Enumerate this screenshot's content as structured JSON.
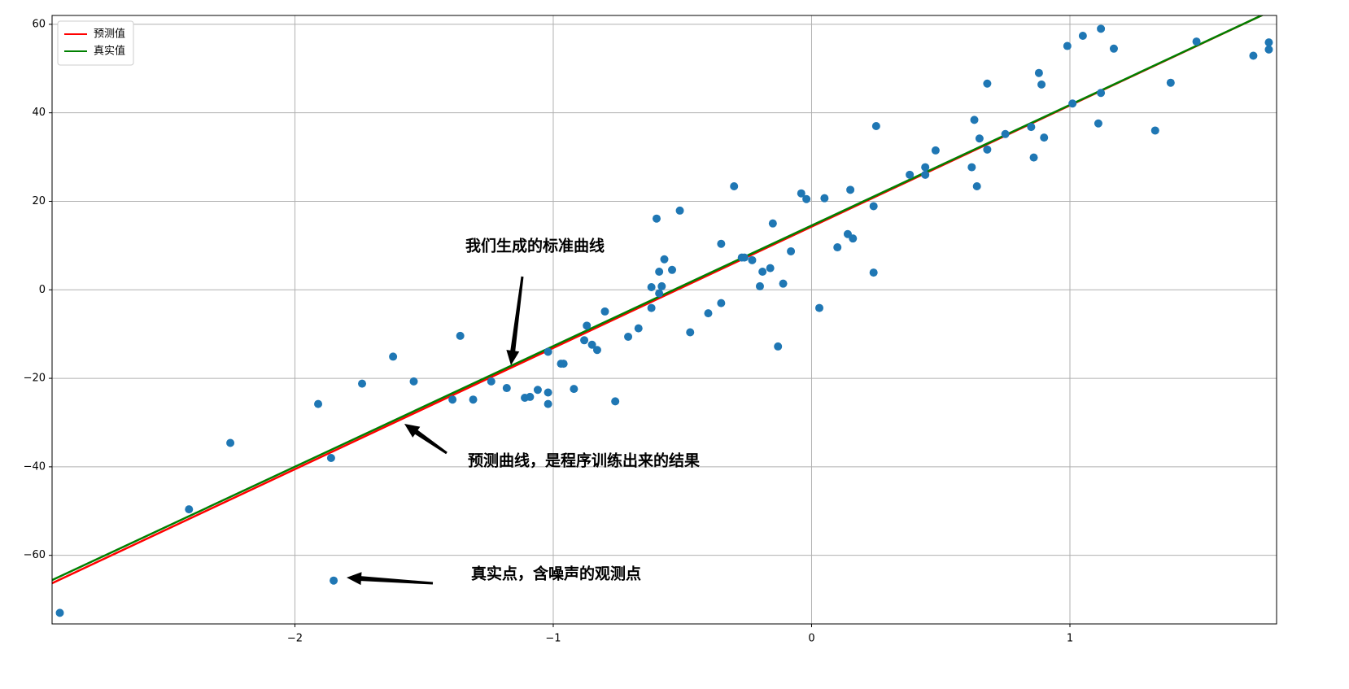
{
  "chart_data": {
    "type": "scatter",
    "xlim": [
      -2.94,
      1.8
    ],
    "ylim": [
      -75.5,
      62
    ],
    "xticks": [
      {
        "value": -2,
        "label": "−2"
      },
      {
        "value": -1,
        "label": "−1"
      },
      0,
      1
    ],
    "yticks": [
      {
        "value": -60,
        "label": "−60"
      },
      {
        "value": -40,
        "label": "−40"
      },
      {
        "value": -20,
        "label": "−20"
      },
      0,
      20,
      40,
      60
    ],
    "grid": true,
    "legend": "upper left",
    "series": [
      {
        "name": "预测值",
        "type": "line",
        "color": "#ff0000",
        "x": [
          -2.94,
          1.76
        ],
        "values": [
          -66.3,
          62.5
        ]
      },
      {
        "name": "真实值",
        "type": "line",
        "color": "#008000",
        "x": [
          -2.94,
          1.76
        ],
        "values": [
          -65.6,
          62.5
        ]
      },
      {
        "type": "scatter",
        "color": "#1f77b4",
        "x": [
          -2.91,
          -2.41,
          -2.25,
          -1.91,
          -1.86,
          -1.85,
          -1.74,
          -1.62,
          -1.54,
          -1.39,
          -1.36,
          -1.31,
          -1.24,
          -1.18,
          -1.11,
          -1.09,
          -1.06,
          -1.02,
          -1.02,
          -1.02,
          -0.97,
          -0.96,
          -0.92,
          -0.88,
          -0.87,
          -0.85,
          -0.83,
          -0.8,
          -0.76,
          -0.71,
          -0.67,
          -0.62,
          -0.62,
          -0.6,
          -0.59,
          -0.59,
          -0.58,
          -0.57,
          -0.54,
          -0.51,
          -0.47,
          -0.4,
          -0.35,
          -0.35,
          -0.3,
          -0.27,
          -0.26,
          -0.23,
          -0.2,
          -0.19,
          -0.16,
          -0.15,
          -0.13,
          -0.11,
          -0.08,
          -0.04,
          -0.02,
          0.03,
          0.05,
          0.1,
          0.14,
          0.15,
          0.16,
          0.24,
          0.24,
          0.25,
          0.38,
          0.44,
          0.44,
          0.48,
          0.62,
          0.63,
          0.64,
          0.65,
          0.68,
          0.68,
          0.75,
          0.85,
          0.86,
          0.88,
          0.89,
          0.9,
          0.99,
          1.01,
          1.05,
          1.11,
          1.12,
          1.12,
          1.17,
          1.33,
          1.39,
          1.49,
          1.71,
          1.77,
          1.77
        ],
        "values": [
          -73.0,
          -49.6,
          -34.6,
          -25.8,
          -38.0,
          -65.7,
          -21.2,
          -15.1,
          -20.7,
          -24.8,
          -10.4,
          -24.8,
          -20.7,
          -22.2,
          -24.4,
          -24.2,
          -22.6,
          -23.2,
          -25.8,
          -14.0,
          -16.7,
          -16.7,
          -22.4,
          -11.4,
          -8.1,
          -12.4,
          -13.6,
          -4.9,
          -25.2,
          -10.6,
          -8.7,
          0.6,
          -4.1,
          16.1,
          -0.8,
          4.1,
          0.8,
          6.9,
          4.5,
          17.9,
          -9.6,
          -5.3,
          10.4,
          -3.0,
          23.4,
          7.3,
          7.3,
          6.7,
          0.8,
          4.1,
          4.9,
          15.0,
          -12.8,
          1.4,
          8.7,
          21.8,
          20.5,
          -4.1,
          20.7,
          9.6,
          12.6,
          22.6,
          11.6,
          18.9,
          3.9,
          37.0,
          26.0,
          27.7,
          26.0,
          31.5,
          27.7,
          38.4,
          23.4,
          34.2,
          46.6,
          31.7,
          35.2,
          36.8,
          29.9,
          49.0,
          46.4,
          34.4,
          55.1,
          42.1,
          57.4,
          37.6,
          44.5,
          59.0,
          54.5,
          36.0,
          46.8,
          56.1,
          52.9,
          54.3,
          55.9
        ]
      }
    ],
    "annotations": [
      {
        "text": "我们生成的标准曲线"
      },
      {
        "text": "预测曲线，是程序训练出来的结果"
      },
      {
        "text": "真实点，含噪声的观测点"
      }
    ]
  }
}
